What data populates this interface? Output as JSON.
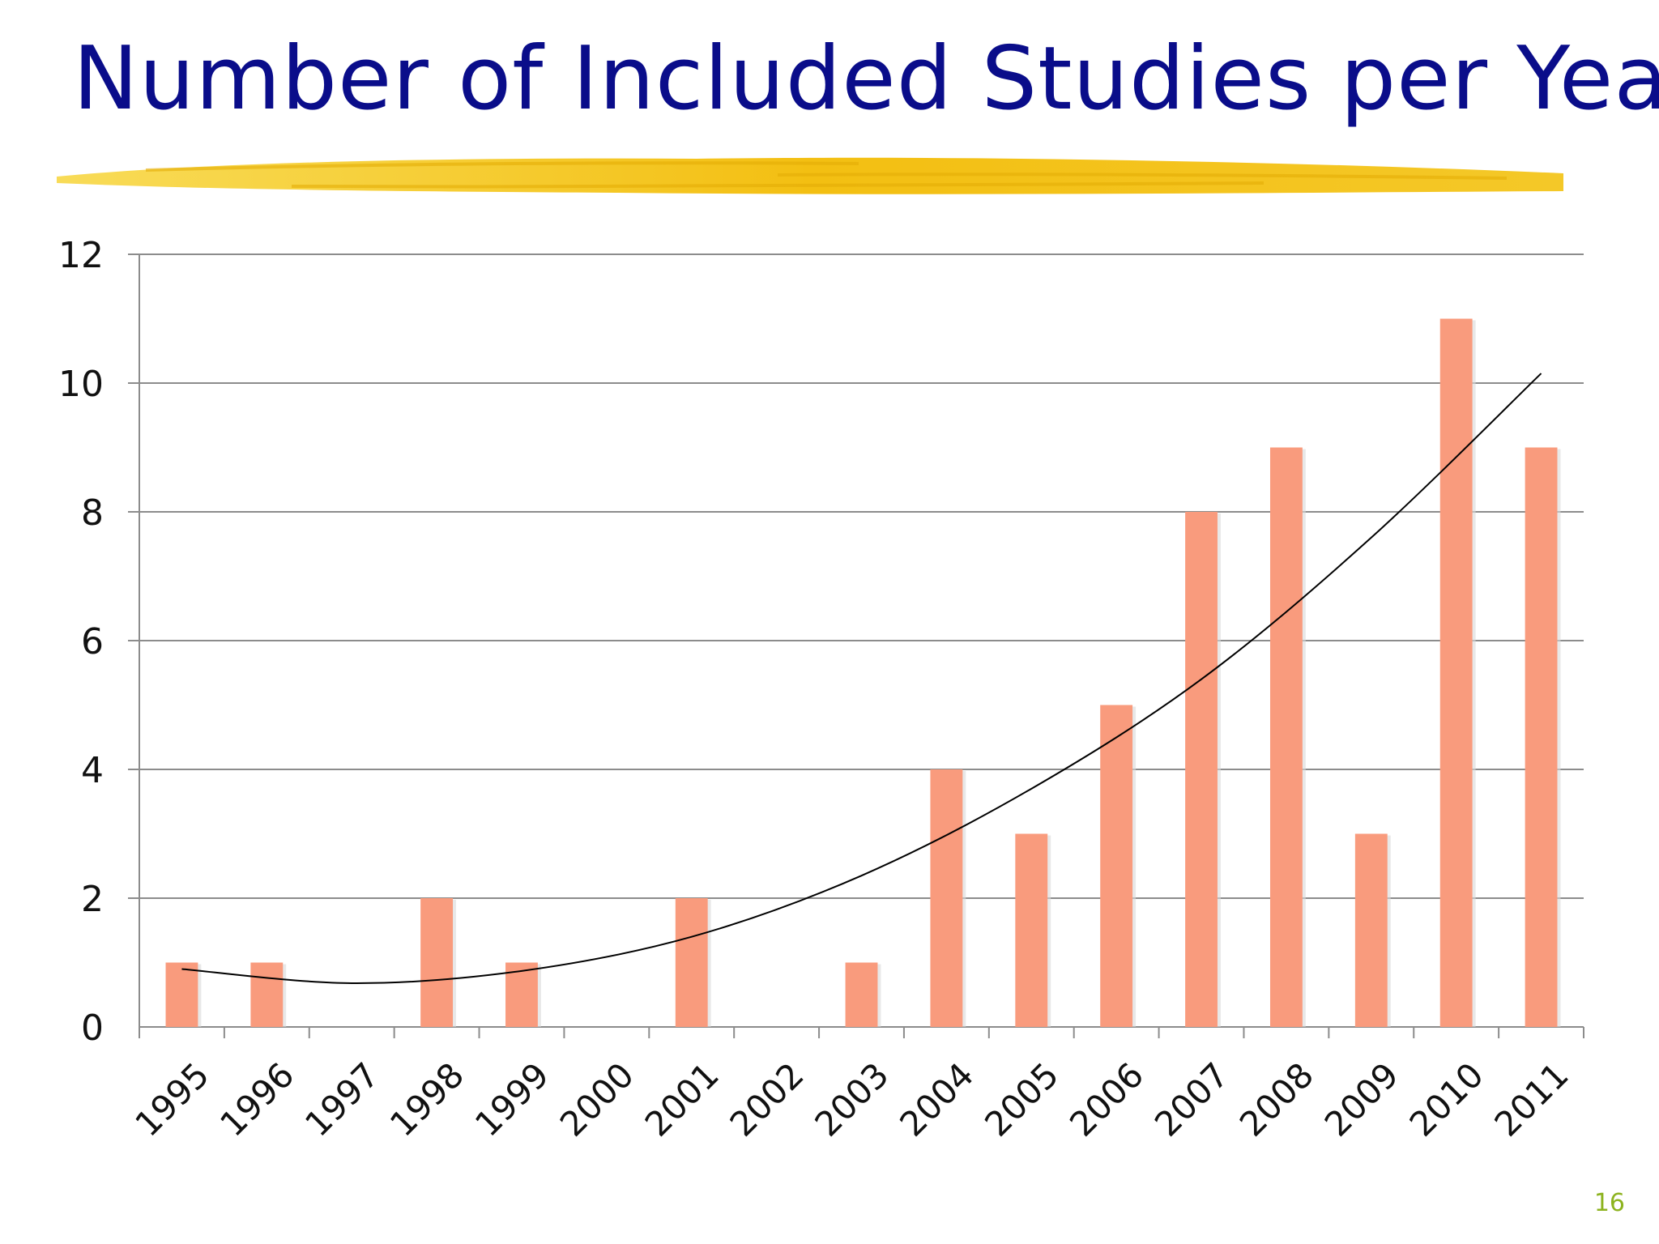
{
  "slide": {
    "title": "Number of Included Studies per Year",
    "page_number": "16"
  },
  "colors": {
    "title": "#0a0d8a",
    "brush": "#f4c20d",
    "bar": "#f99b7d",
    "trendline": "#000000",
    "gridline": "#8c8c8c",
    "page_number": "#8db31f"
  },
  "chart_data": {
    "type": "bar",
    "title": "",
    "xlabel": "",
    "ylabel": "",
    "categories": [
      "1995",
      "1996",
      "1997",
      "1998",
      "1999",
      "2000",
      "2001",
      "2002",
      "2003",
      "2004",
      "2005",
      "2006",
      "2007",
      "2008",
      "2009",
      "2010",
      "2011"
    ],
    "values": [
      1,
      1,
      0,
      2,
      1,
      0,
      2,
      0,
      1,
      4,
      3,
      5,
      8,
      9,
      3,
      11,
      9
    ],
    "ylim": [
      0,
      12
    ],
    "yticks": [
      0,
      2,
      4,
      6,
      8,
      10,
      12
    ],
    "grid": "horizontal",
    "legend": "none",
    "x_tick_rotation": "-45deg",
    "trendline": {
      "type": "polynomial",
      "x": [
        "1995",
        "1997",
        "1999",
        "2001",
        "2003",
        "2005",
        "2007",
        "2009",
        "2011"
      ],
      "values": [
        0.9,
        0.68,
        0.87,
        1.4,
        2.35,
        3.7,
        5.4,
        7.6,
        10.15
      ]
    }
  }
}
